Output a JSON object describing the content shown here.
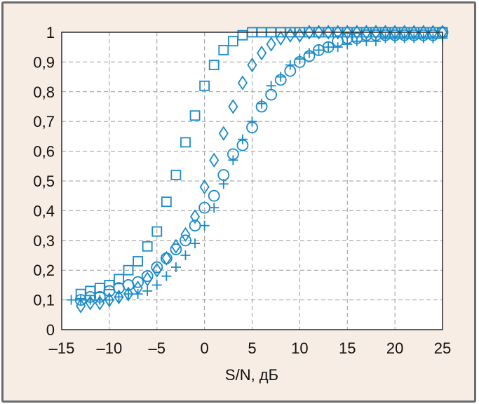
{
  "chart_data": {
    "type": "scatter",
    "title": "",
    "xlabel": "S/N, дБ",
    "ylabel": "",
    "xlim": [
      -15,
      25
    ],
    "ylim": [
      0,
      1
    ],
    "grid": true,
    "grid_style": "dashed",
    "x_ticks": [
      -15,
      -10,
      -5,
      0,
      5,
      10,
      15,
      20,
      25
    ],
    "x_tick_labels": [
      "–15",
      "–10",
      "–5",
      "0",
      "5",
      "10",
      "15",
      "20",
      "25"
    ],
    "y_ticks": [
      0,
      0.1,
      0.2,
      0.3,
      0.4,
      0.5,
      0.6,
      0.7,
      0.8,
      0.9,
      1
    ],
    "y_tick_labels": [
      "0",
      "0,1",
      "0,2",
      "0,3",
      "0,4",
      "0,5",
      "0,6",
      "0,7",
      "0,8",
      "0,9",
      "1"
    ],
    "marker_color": "#1a8ac8",
    "series": [
      {
        "name": "squares",
        "marker": "square",
        "x": [
          -13,
          -12,
          -11,
          -10,
          -9,
          -8,
          -7,
          -6,
          -5,
          -4,
          -3,
          -2,
          -1,
          0,
          1,
          2,
          3,
          4,
          5,
          6,
          7,
          8,
          9,
          10,
          11,
          12,
          13,
          14,
          15,
          16,
          17,
          18,
          19,
          20,
          21,
          22,
          23,
          24,
          25
        ],
        "y": [
          0.12,
          0.13,
          0.14,
          0.15,
          0.17,
          0.2,
          0.23,
          0.28,
          0.33,
          0.43,
          0.52,
          0.63,
          0.72,
          0.82,
          0.89,
          0.94,
          0.97,
          0.99,
          1,
          1,
          1,
          1,
          1,
          1,
          1,
          1,
          1,
          1,
          1,
          1,
          1,
          1,
          1,
          1,
          1,
          1,
          1,
          1,
          1
        ]
      },
      {
        "name": "diamonds",
        "marker": "diamond",
        "x": [
          -13,
          -12,
          -11,
          -10,
          -9,
          -8,
          -7,
          -6,
          -5,
          -4,
          -3,
          -2,
          -1,
          0,
          1,
          2,
          3,
          4,
          5,
          6,
          7,
          8,
          9,
          10,
          11,
          12,
          13,
          14,
          15,
          16,
          17,
          18,
          19,
          20,
          21,
          22,
          23,
          24,
          25
        ],
        "y": [
          0.08,
          0.09,
          0.09,
          0.1,
          0.11,
          0.12,
          0.14,
          0.17,
          0.2,
          0.24,
          0.28,
          0.32,
          0.38,
          0.48,
          0.57,
          0.66,
          0.75,
          0.83,
          0.89,
          0.93,
          0.96,
          0.98,
          0.99,
          0.99,
          1,
          1,
          1,
          1,
          1,
          1,
          1,
          1,
          1,
          1,
          1,
          1,
          1,
          1,
          1
        ]
      },
      {
        "name": "circles",
        "marker": "circle",
        "x": [
          -13,
          -12,
          -11,
          -10,
          -9,
          -8,
          -7,
          -6,
          -5,
          -4,
          -3,
          -2,
          -1,
          0,
          1,
          2,
          3,
          4,
          5,
          6,
          7,
          8,
          9,
          10,
          11,
          12,
          13,
          14,
          15,
          16,
          17,
          18,
          19,
          20,
          21,
          22,
          23,
          24,
          25
        ],
        "y": [
          0.1,
          0.11,
          0.11,
          0.13,
          0.14,
          0.15,
          0.16,
          0.18,
          0.21,
          0.24,
          0.27,
          0.3,
          0.35,
          0.41,
          0.45,
          0.52,
          0.59,
          0.62,
          0.68,
          0.75,
          0.79,
          0.84,
          0.87,
          0.9,
          0.92,
          0.94,
          0.95,
          0.97,
          0.98,
          0.98,
          0.99,
          0.99,
          0.99,
          0.99,
          0.99,
          0.99,
          0.99,
          0.99,
          1
        ]
      },
      {
        "name": "plus",
        "marker": "plus",
        "x": [
          -14,
          -13,
          -12,
          -11,
          -10,
          -9,
          -8,
          -7,
          -6,
          -5,
          -4,
          -3,
          -2,
          -1,
          0,
          1,
          2,
          3,
          4,
          5,
          6,
          7,
          8,
          9,
          10,
          11,
          12,
          13,
          14,
          15,
          16,
          17,
          18,
          19,
          20,
          21,
          22,
          23,
          24,
          25
        ],
        "y": [
          0.1,
          0.1,
          0.1,
          0.1,
          0.1,
          0.11,
          0.12,
          0.12,
          0.13,
          0.15,
          0.18,
          0.21,
          0.25,
          0.29,
          0.35,
          0.41,
          0.49,
          0.57,
          0.64,
          0.7,
          0.76,
          0.82,
          0.85,
          0.89,
          0.91,
          0.93,
          0.94,
          0.95,
          0.95,
          0.96,
          0.97,
          0.97,
          0.97,
          0.98,
          0.98,
          0.98,
          0.98,
          0.98,
          0.98,
          0.98
        ]
      }
    ]
  }
}
